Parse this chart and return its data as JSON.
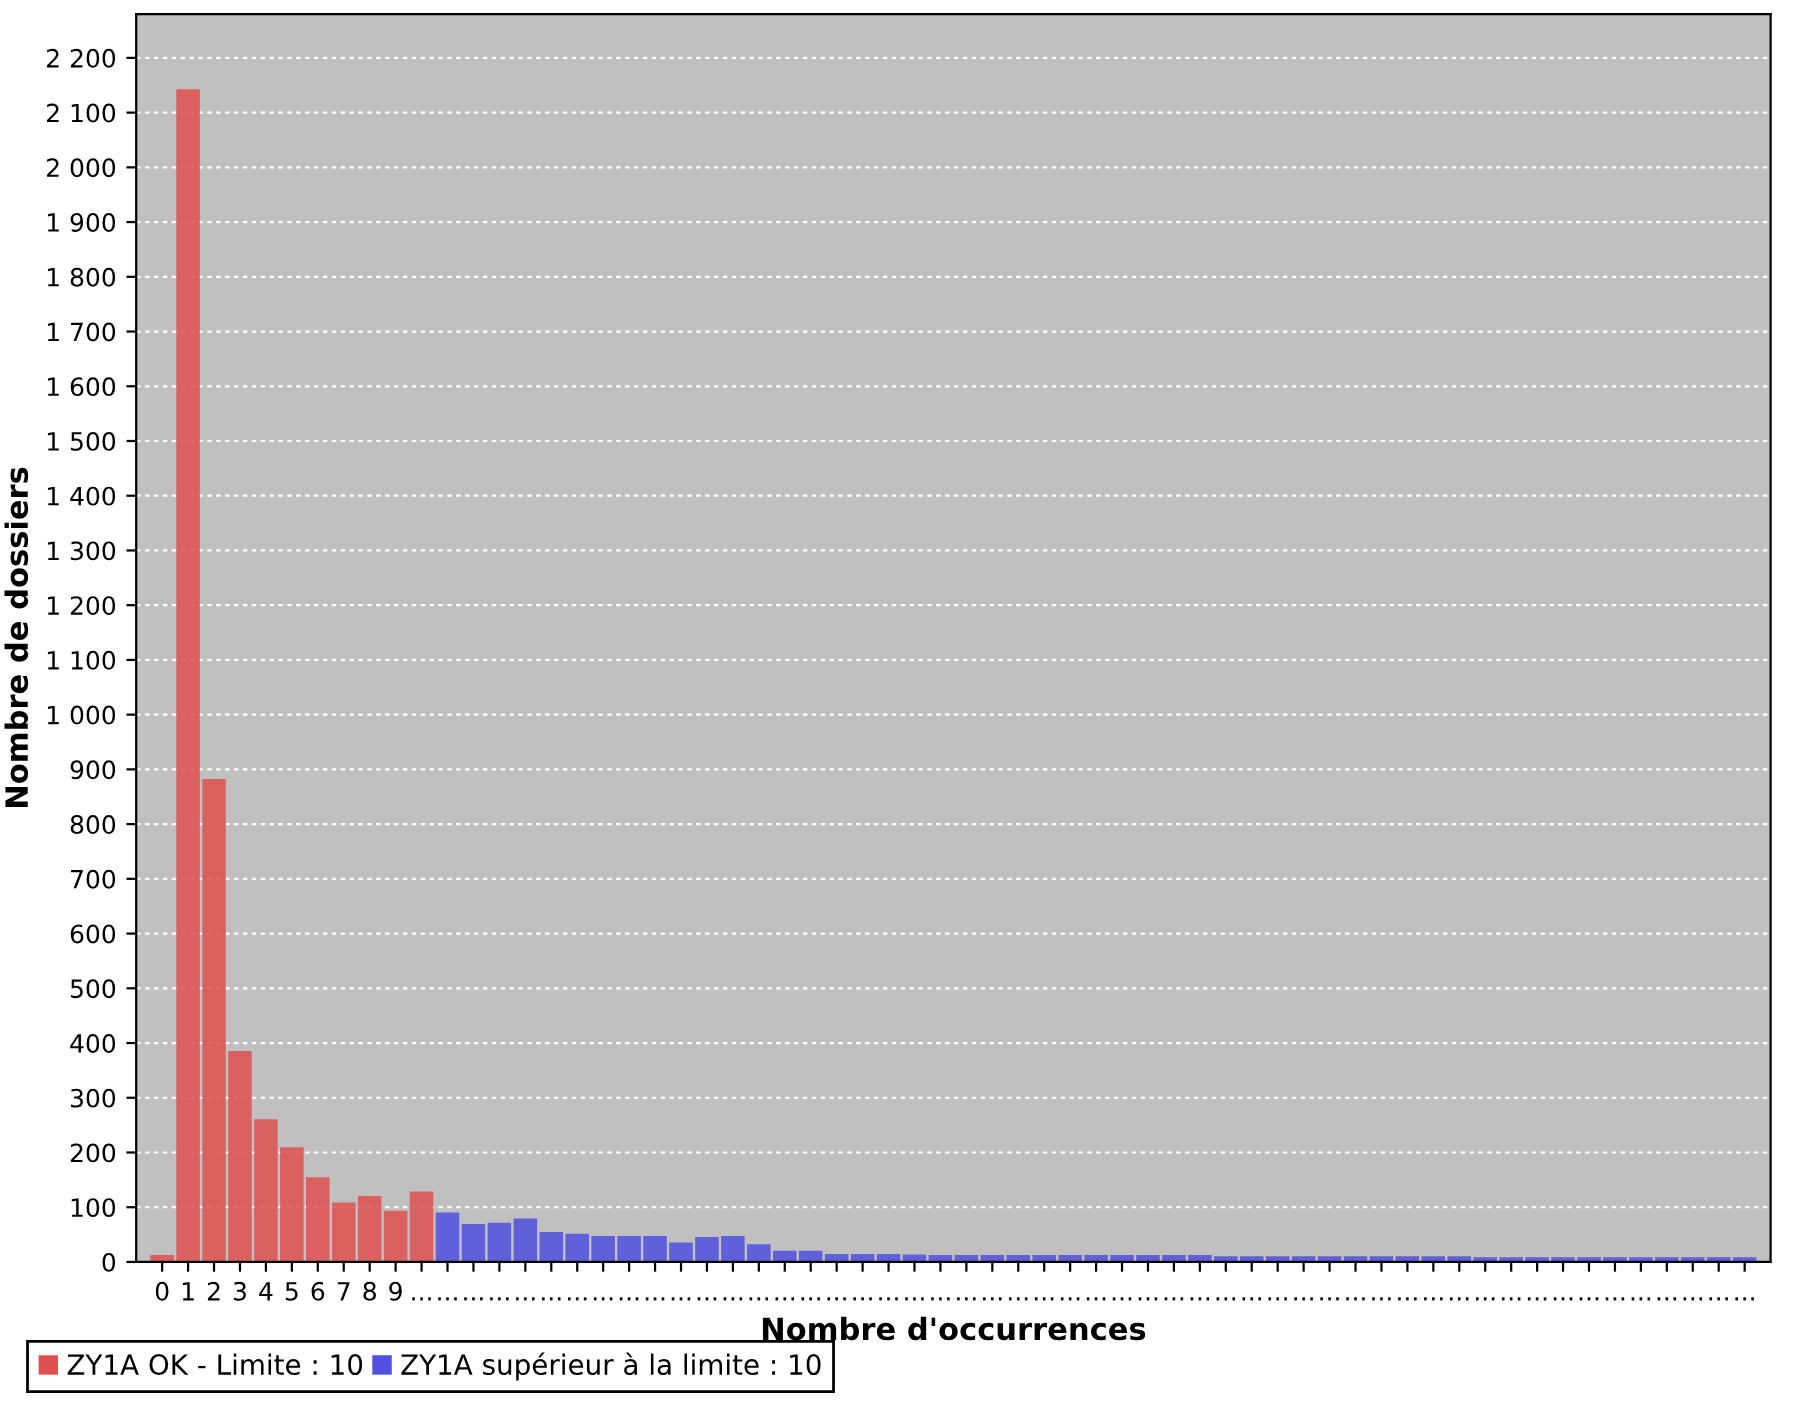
{
  "chart_data": {
    "type": "bar",
    "xlabel": "Nombre d'occurrences",
    "ylabel": "Nombre de dossiers",
    "categories": [
      "0",
      "1",
      "2",
      "3",
      "4",
      "5",
      "6",
      "7",
      "8",
      "9",
      "...",
      "...",
      "...",
      "...",
      "...",
      "...",
      "...",
      "...",
      "...",
      "...",
      "...",
      "...",
      "...",
      "...",
      "...",
      "...",
      "...",
      "...",
      "...",
      "...",
      "...",
      "...",
      "...",
      "...",
      "...",
      "...",
      "...",
      "...",
      "...",
      "...",
      "...",
      "...",
      "...",
      "...",
      "...",
      "...",
      "...",
      "...",
      "...",
      "...",
      "...",
      "...",
      "...",
      "...",
      "...",
      "...",
      "...",
      "...",
      "...",
      "...",
      "...",
      "..."
    ],
    "series": [
      {
        "name": "ZY1A OK - Limite : 10",
        "color": "#e05050",
        "values": [
          10,
          2140,
          880,
          383,
          258,
          207,
          152,
          106,
          118,
          91,
          126,
          null,
          null,
          null,
          null,
          null,
          null,
          null,
          null,
          null,
          null,
          null,
          null,
          null,
          null,
          null,
          null,
          null,
          null,
          null,
          null,
          null,
          null,
          null,
          null,
          null,
          null,
          null,
          null,
          null,
          null,
          null,
          null,
          null,
          null,
          null,
          null,
          null,
          null,
          null,
          null,
          null,
          null,
          null,
          null,
          null,
          null,
          null,
          null,
          null,
          null,
          null
        ]
      },
      {
        "name": "ZY1A supérieur à la limite : 10",
        "color": "#5050e0",
        "values": [
          null,
          null,
          null,
          null,
          null,
          null,
          null,
          null,
          null,
          null,
          null,
          88,
          67,
          69,
          77,
          52,
          49,
          45,
          45,
          45,
          33,
          43,
          45,
          30,
          18,
          18,
          12,
          12,
          12,
          11,
          10,
          10,
          10,
          10,
          10,
          10,
          10,
          10,
          10,
          10,
          10,
          8,
          8,
          8,
          8,
          8,
          8,
          8,
          8,
          8,
          8,
          6,
          6,
          6,
          6,
          6,
          6,
          6,
          6,
          6,
          6,
          6
        ]
      }
    ],
    "ylim": [
      0,
      2280
    ],
    "yticks": [
      0,
      100,
      200,
      300,
      400,
      500,
      600,
      700,
      800,
      900,
      {
        "value": 1000,
        "label": "1 000"
      },
      {
        "value": 1100,
        "label": "1 100"
      },
      {
        "value": 1200,
        "label": "1 200"
      },
      {
        "value": 1300,
        "label": "1 300"
      },
      {
        "value": 1400,
        "label": "1 400"
      },
      {
        "value": 1500,
        "label": "1 500"
      },
      {
        "value": 1600,
        "label": "1 600"
      },
      {
        "value": 1700,
        "label": "1 700"
      },
      {
        "value": 1800,
        "label": "1 800"
      },
      {
        "value": 1900,
        "label": "1 900"
      },
      {
        "value": 2000,
        "label": "2 000"
      },
      {
        "value": 2100,
        "label": "2 100"
      },
      {
        "value": 2200,
        "label": "2 200"
      }
    ],
    "grid": "y",
    "legend": "bottom left"
  }
}
